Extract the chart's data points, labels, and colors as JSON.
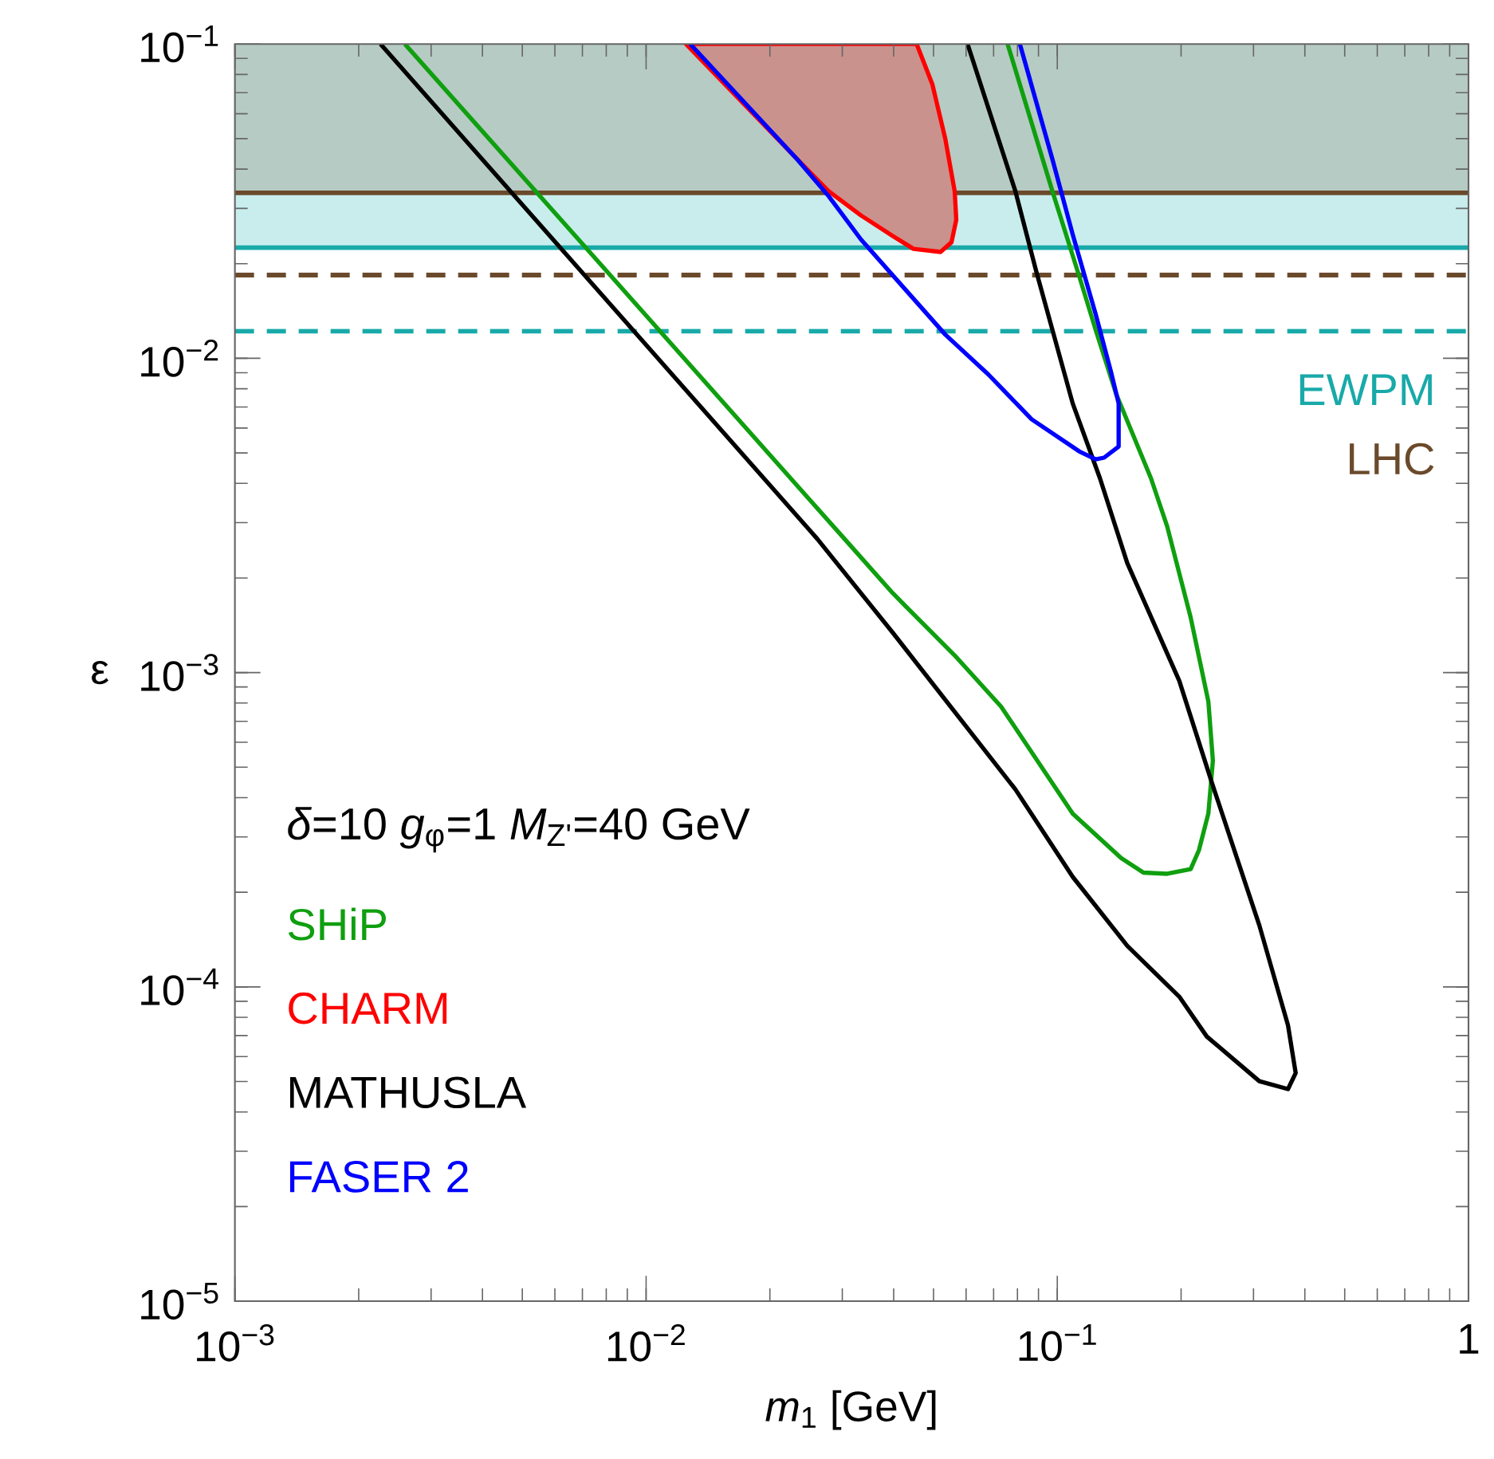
{
  "chart_data": {
    "type": "line",
    "xlabel": "*m*$_{1}$ [GeV]",
    "ylabel": "ε",
    "log": "xy",
    "xlim": [
      0.001,
      1
    ],
    "ylim": [
      1e-05,
      0.1
    ],
    "xticks": [
      {
        "value": 0.001,
        "label": "10$^{−3}$"
      },
      {
        "value": 0.01,
        "label": "10$^{−2}$"
      },
      {
        "value": 0.1,
        "label": "10$^{−1}$"
      },
      1
    ],
    "yticks": [
      {
        "value": 1e-05,
        "label": "10$^{−5}$"
      },
      {
        "value": 0.0001,
        "label": "10$^{−4}$"
      },
      {
        "value": 0.001,
        "label": "10$^{−3}$"
      },
      {
        "value": 0.01,
        "label": "10$^{−2}$"
      },
      {
        "value": 0.1,
        "label": "10$^{−1}$"
      }
    ],
    "legend": "bottom left",
    "annotations": [
      "*δ*=10  *g*$_{φ}$=1  *M*$_{Z'}$=40 GeV"
    ],
    "bands": [
      {
        "axis": "y",
        "from": 0.0225,
        "to": 0.1,
        "color": "#c9eded"
      },
      {
        "axis": "y",
        "from": 0.0336,
        "to": 0.1,
        "color": "#b6cbc4"
      }
    ],
    "ref_lines": [
      {
        "axis": "y",
        "value": 0.0225,
        "label": "EWPM",
        "color": "#19a9a9",
        "line_style": "solid"
      },
      {
        "axis": "y",
        "value": 0.0336,
        "label": "LHC",
        "color": "#6b4a2b",
        "line_style": "solid"
      },
      {
        "axis": "y",
        "value": 0.0184,
        "color": "#6b4a2b",
        "line_style": "dashed"
      },
      {
        "axis": "y",
        "value": 0.0122,
        "color": "#19a9a9",
        "line_style": "dashed"
      }
    ],
    "series": [
      {
        "name": "SHiP",
        "color": "#0f9f0f",
        "x": [
          0.00259,
          0.0304,
          0.0398,
          0.0435,
          0.0568,
          0.073,
          0.109,
          0.143,
          0.162,
          0.185,
          0.211,
          0.221,
          0.233,
          0.239,
          0.233,
          0.211,
          0.185,
          0.169,
          0.139,
          0.124,
          0.113,
          0.0973,
          0.0757
        ],
        "values": [
          0.1,
          0.00266,
          0.00179,
          0.00159,
          0.00112,
          0.00078,
          0.000356,
          0.000257,
          0.000231,
          0.000229,
          0.000237,
          0.000272,
          0.000356,
          0.000525,
          0.000809,
          0.0015,
          0.00292,
          0.00415,
          0.00771,
          0.0123,
          0.0183,
          0.034,
          0.1
        ]
      },
      {
        "name": "CHARM",
        "type": "area",
        "color": "#ff0000",
        "x": [
          0.0125,
          0.0233,
          0.0278,
          0.0333,
          0.0398,
          0.0447,
          0.052,
          0.0553,
          0.0568,
          0.0563,
          0.0534,
          0.0497,
          0.0455
        ],
        "values": [
          0.1,
          0.043,
          0.034,
          0.0285,
          0.0245,
          0.0223,
          0.0218,
          0.0234,
          0.0276,
          0.034,
          0.05,
          0.0743,
          0.1
        ]
      },
      {
        "name": "MATHUSLA",
        "color": "#000000",
        "x": [
          0.00226,
          0.0261,
          0.0398,
          0.0791,
          0.109,
          0.148,
          0.198,
          0.231,
          0.31,
          0.364,
          0.38,
          0.364,
          0.31,
          0.237,
          0.198,
          0.148,
          0.127,
          0.109,
          0.0889,
          0.0791,
          0.0605
        ],
        "values": [
          0.1,
          0.00266,
          0.00134,
          0.000425,
          0.000224,
          0.000135,
          9.31e-05,
          6.95e-05,
          5.01e-05,
          4.73e-05,
          5.32e-05,
          7.55e-05,
          0.000157,
          0.000451,
          0.000942,
          0.00223,
          0.00415,
          0.00719,
          0.0189,
          0.034,
          0.1
        ]
      },
      {
        "name": "FASER 2",
        "color": "#0000ff",
        "x": [
          0.0128,
          0.0233,
          0.0278,
          0.0333,
          0.0534,
          0.068,
          0.0866,
          0.113,
          0.124,
          0.13,
          0.141,
          0.141,
          0.135,
          0.124,
          0.109,
          0.0973,
          0.0811
        ],
        "values": [
          0.1,
          0.043,
          0.0328,
          0.0239,
          0.0119,
          0.00888,
          0.0064,
          0.00506,
          0.00477,
          0.00483,
          0.00524,
          0.00718,
          0.00908,
          0.0138,
          0.0248,
          0.043,
          0.1
        ]
      }
    ]
  }
}
